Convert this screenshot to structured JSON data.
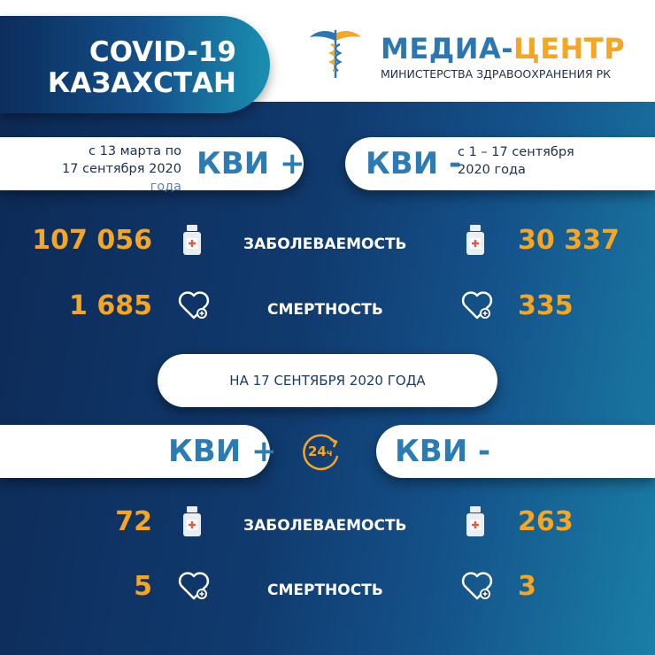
{
  "header": {
    "title_line1": "COVID-19",
    "title_line2": "КАЗАХСТАН"
  },
  "logo": {
    "name_part1": "МЕДИА-",
    "name_part2": "ЦЕНТР",
    "subtitle": "МИНИСТЕРСТВА ЗДРАВООХРАНЕНИЯ РК",
    "icon": "caduceus-icon"
  },
  "cumulative": {
    "positive": {
      "label": "КВИ +",
      "period_line1": "с 13 марта по",
      "period_line2": "17 сентября 2020",
      "period_line3": "года",
      "cases": "107 056",
      "deaths": "1 685"
    },
    "negative": {
      "label": "КВИ -",
      "period_line1": "с 1 – 17 сентября",
      "period_line2": "2020 года",
      "cases": "30 337",
      "deaths": "335"
    }
  },
  "labels": {
    "cases": "ЗАБОЛЕВАЕМОСТЬ",
    "deaths": "СМЕРТНОСТЬ"
  },
  "daily": {
    "date_label": "НА 17 СЕНТЯБРЯ 2020 ГОДА",
    "badge": "24",
    "badge_suffix": "ч",
    "positive": {
      "label": "КВИ +",
      "cases": "72",
      "deaths": "5"
    },
    "negative": {
      "label": "КВИ -",
      "cases": "263",
      "deaths": "3"
    }
  },
  "colors": {
    "accent": "#f6a623",
    "brand_blue": "#2b7bb5",
    "navy": "#0d2a57"
  }
}
